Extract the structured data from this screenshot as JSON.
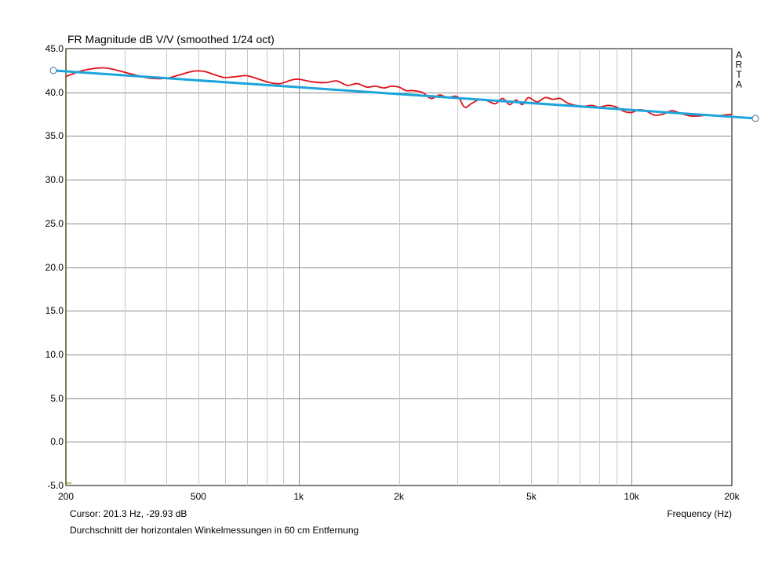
{
  "chart_data": {
    "type": "line",
    "title": "FR Magnitude dB V/V (smoothed 1/24 oct)",
    "xlabel": "Frequency (Hz)",
    "ylabel": "",
    "x_scale": "log",
    "xlim": [
      200,
      20000
    ],
    "ylim": [
      -5.0,
      45.0
    ],
    "x_ticks": [
      200,
      500,
      1000,
      2000,
      5000,
      10000,
      20000
    ],
    "x_tick_labels": [
      "200",
      "500",
      "1k",
      "2k",
      "5k",
      "10k",
      "20k"
    ],
    "y_ticks": [
      45.0,
      40.0,
      35.0,
      30.0,
      25.0,
      20.0,
      15.0,
      10.0,
      5.0,
      0.0,
      -5.0
    ],
    "y_tick_labels": [
      "45.0",
      "40.0",
      "35.0",
      "30.0",
      "25.0",
      "20.0",
      "15.0",
      "10.0",
      "5.0",
      "0.0",
      "-5.0"
    ],
    "grid": true,
    "series": [
      {
        "name": "frequency response",
        "color": "#e0101a",
        "x": [
          200,
          220,
          240,
          260,
          280,
          300,
          330,
          360,
          400,
          440,
          480,
          520,
          560,
          600,
          650,
          700,
          760,
          820,
          880,
          950,
          1000,
          1100,
          1200,
          1300,
          1400,
          1500,
          1600,
          1700,
          1800,
          1900,
          2000,
          2100,
          2200,
          2350,
          2500,
          2650,
          2800,
          3000,
          3150,
          3300,
          3500,
          3700,
          3900,
          4100,
          4300,
          4500,
          4700,
          4900,
          5200,
          5500,
          5800,
          6100,
          6400,
          6800,
          7200,
          7600,
          8000,
          8500,
          9000,
          9500,
          10000,
          10500,
          11000,
          11700,
          12400,
          13200,
          14000,
          15000,
          16000,
          17000,
          18000,
          19000,
          20000
        ],
        "y": [
          41.8,
          42.4,
          42.7,
          42.8,
          42.6,
          42.3,
          41.9,
          41.6,
          41.6,
          42.0,
          42.4,
          42.4,
          42.0,
          41.7,
          41.8,
          41.9,
          41.5,
          41.1,
          41.0,
          41.4,
          41.5,
          41.2,
          41.1,
          41.3,
          40.8,
          41.0,
          40.6,
          40.7,
          40.5,
          40.7,
          40.6,
          40.2,
          40.2,
          40.0,
          39.3,
          39.7,
          39.4,
          39.5,
          38.3,
          38.7,
          39.2,
          39.0,
          38.7,
          39.3,
          38.6,
          39.1,
          38.6,
          39.4,
          38.9,
          39.4,
          39.2,
          39.3,
          38.8,
          38.5,
          38.4,
          38.5,
          38.3,
          38.5,
          38.3,
          37.8,
          37.7,
          38.0,
          37.9,
          37.4,
          37.5,
          37.9,
          37.6,
          37.3,
          37.3,
          37.4,
          37.3,
          37.4,
          37.5
        ]
      },
      {
        "name": "regression line",
        "color": "#1ba5dc",
        "x": [
          200,
          20000
        ],
        "y": [
          42.4,
          37.2
        ],
        "extends_past_plot": true
      }
    ],
    "annotations": [
      "A",
      "R",
      "T",
      "A"
    ],
    "axis_color": "#7f7a00",
    "grid_color": "#c8c8c8",
    "grid_major_color": "#8c8c8c"
  },
  "footer": {
    "cursor": "Cursor: 201.3 Hz, -29.93 dB",
    "x_label": "Frequency (Hz)",
    "caption": "Durchschnitt der horizontalen Winkelmessungen in 60 cm Entfernung"
  }
}
